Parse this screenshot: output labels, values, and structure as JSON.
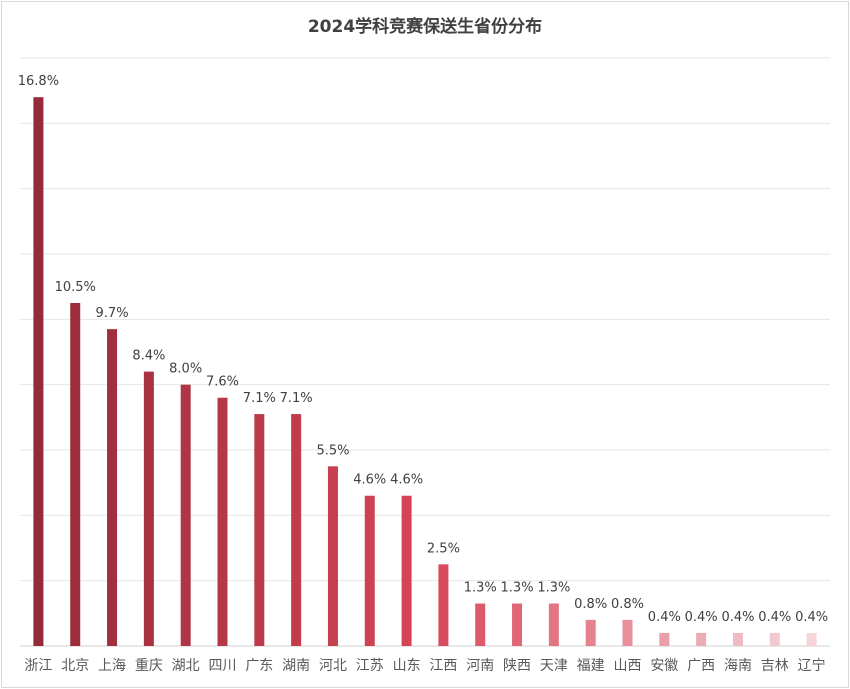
{
  "chart_data": {
    "type": "bar",
    "title": "2024学科竞赛保送生省份分布",
    "categories": [
      "浙江",
      "北京",
      "上海",
      "重庆",
      "湖北",
      "四川",
      "广东",
      "湖南",
      "河北",
      "江苏",
      "山东",
      "江西",
      "河南",
      "陕西",
      "天津",
      "福建",
      "山西",
      "安徽",
      "广西",
      "海南",
      "吉林",
      "辽宁"
    ],
    "values": [
      16.8,
      10.5,
      9.7,
      8.4,
      8.0,
      7.6,
      7.1,
      7.1,
      5.5,
      4.6,
      4.6,
      2.5,
      1.3,
      1.3,
      1.3,
      0.8,
      0.8,
      0.4,
      0.4,
      0.4,
      0.4,
      0.4
    ],
    "data_labels": [
      "16.8%",
      "10.5%",
      "9.7%",
      "8.4%",
      "8.0%",
      "7.6%",
      "7.1%",
      "7.1%",
      "5.5%",
      "4.6%",
      "4.6%",
      "2.5%",
      "1.3%",
      "1.3%",
      "1.3%",
      "0.8%",
      "0.8%",
      "0.4%",
      "0.4%",
      "0.4%",
      "0.4%",
      "0.4%"
    ],
    "xlabel": "",
    "ylabel": "",
    "ylim": [
      0,
      18
    ],
    "grid_step": 2,
    "grid": true,
    "y_tick_labels_shown": false,
    "legend": "none",
    "colors": {
      "start": "#952a3a",
      "middle": "#d84557",
      "end": "#f5d5d9"
    }
  }
}
